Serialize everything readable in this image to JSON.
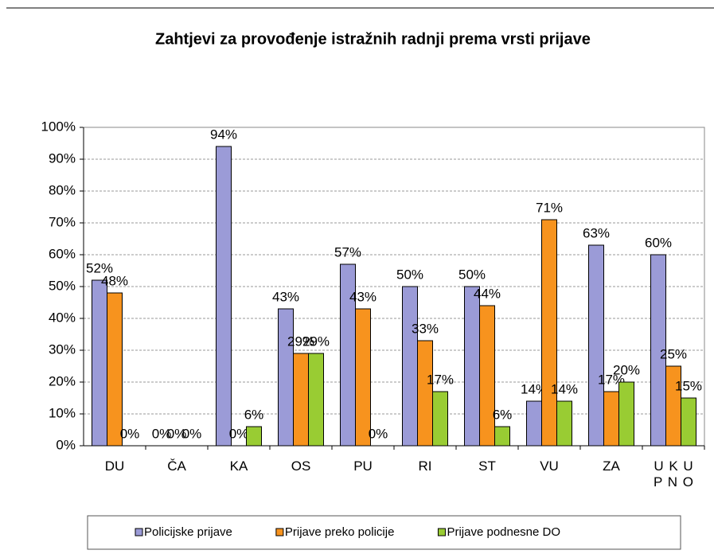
{
  "chart_data": {
    "type": "bar",
    "title": "Zahtjevi za provođenje istražnih radnji prema vrsti prijave",
    "categories": [
      "DU",
      "ČA",
      "KA",
      "OS",
      "PU",
      "RI",
      "ST",
      "VU",
      "ZA",
      "U K U P N O"
    ],
    "series": [
      {
        "name": "Policijske prijave",
        "color": "#9b9bd7",
        "values": [
          52,
          0,
          94,
          43,
          57,
          50,
          50,
          14,
          63,
          60
        ],
        "value_labels": [
          "52%",
          "0%",
          "94%",
          "43%",
          "57%",
          "50%",
          "50%",
          "14%",
          "63%",
          "60%"
        ]
      },
      {
        "name": "Prijave preko policije",
        "color": "#f7931e",
        "values": [
          48,
          0,
          0,
          29,
          43,
          33,
          44,
          71,
          17,
          25
        ],
        "value_labels": [
          "48%",
          "0%",
          "0%",
          "29%",
          "43%",
          "33%",
          "44%",
          "71%",
          "17%",
          "25%"
        ]
      },
      {
        "name": "Prijave podnesne DO",
        "color": "#99cc33",
        "values": [
          0,
          0,
          6,
          29,
          0,
          17,
          6,
          14,
          20,
          15
        ],
        "value_labels": [
          "0%",
          "0%",
          "6%",
          "29%",
          "0%",
          "17%",
          "6%",
          "14%",
          "20%",
          "15%"
        ]
      }
    ],
    "ylim": [
      0,
      100
    ],
    "yticks": [
      {
        "value": 0,
        "label": "0%"
      },
      {
        "value": 10,
        "label": "10%"
      },
      {
        "value": 20,
        "label": "20%"
      },
      {
        "value": 30,
        "label": "30%"
      },
      {
        "value": 40,
        "label": "40%"
      },
      {
        "value": 50,
        "label": "50%"
      },
      {
        "value": 60,
        "label": "60%"
      },
      {
        "value": 70,
        "label": "70%"
      },
      {
        "value": 80,
        "label": "80%"
      },
      {
        "value": 90,
        "label": "90%"
      },
      {
        "value": 100,
        "label": "100%"
      }
    ],
    "grid": true,
    "legend": "bottom"
  }
}
